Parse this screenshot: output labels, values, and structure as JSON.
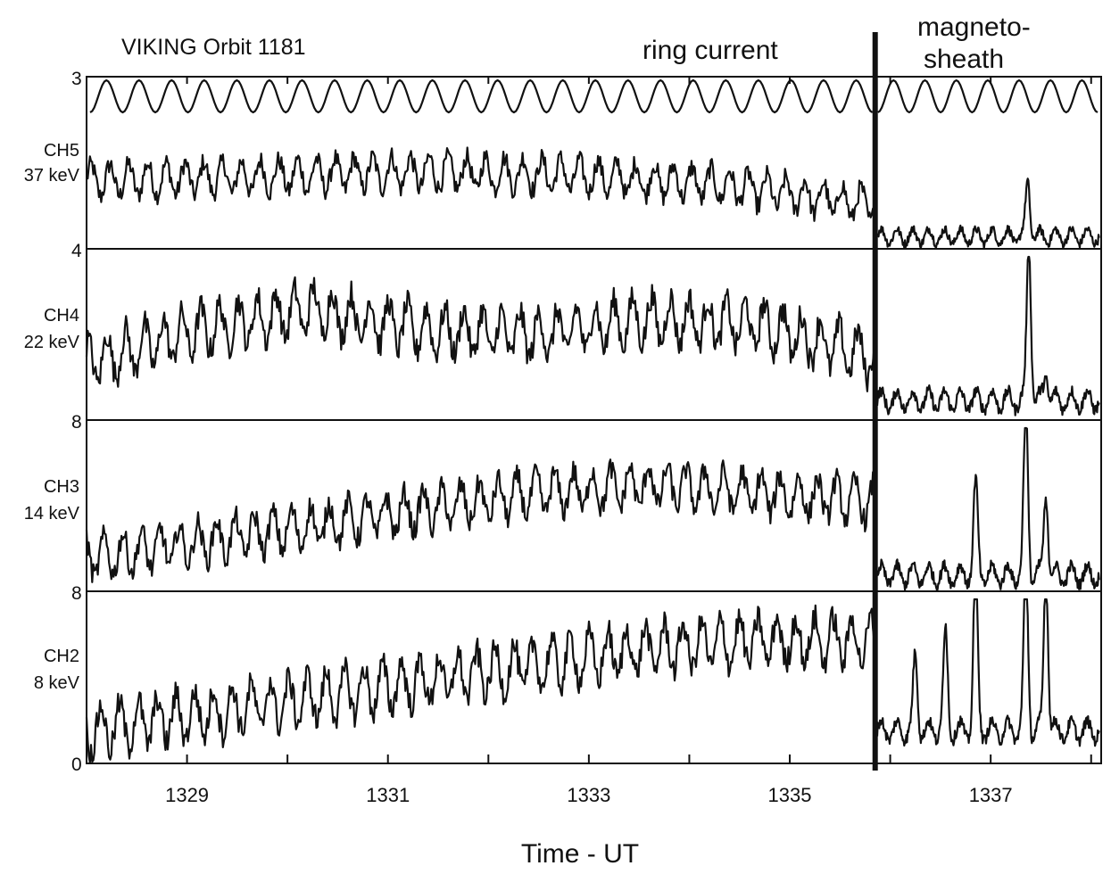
{
  "chart_data": {
    "type": "line",
    "title": "VIKING Orbit 1181",
    "xlabel": "Time - UT",
    "x_ticks": [
      "1329",
      "1331",
      "1333",
      "1335",
      "1337"
    ],
    "xlim": [
      1328.0,
      1338.1
    ],
    "region_labels": {
      "ring_current": "ring current",
      "magnetosheath_line1": "magneto-",
      "magnetosheath_line2": "sheath"
    },
    "boundary_time": 1335.85,
    "axis_scale_labels": [
      "3",
      "4",
      "8",
      "8",
      "0"
    ],
    "panels": [
      {
        "name": "CH5",
        "energy": "37 keV",
        "ring_current_level": 0.55,
        "ring_current_trend": [
          0.55,
          0.58,
          0.62,
          0.6,
          0.52,
          0.35
        ],
        "ripple": 0.13,
        "sheath_level": 0.1,
        "sheath_peaks": [
          {
            "t": 1337.37,
            "h": 0.45
          }
        ]
      },
      {
        "name": "CH4",
        "energy": "22 keV",
        "ring_current_level": 0.55,
        "ring_current_trend": [
          0.35,
          0.55,
          0.68,
          0.55,
          0.52,
          0.62,
          0.58,
          0.38
        ],
        "ripple": 0.14,
        "sheath_level": 0.12,
        "sheath_peaks": [
          {
            "t": 1337.38,
            "h": 0.95
          },
          {
            "t": 1337.55,
            "h": 0.18
          }
        ]
      },
      {
        "name": "CH3",
        "energy": "14 keV",
        "ring_current_level": 0.5,
        "ring_current_trend": [
          0.2,
          0.3,
          0.4,
          0.5,
          0.6,
          0.65,
          0.6,
          0.55
        ],
        "ripple": 0.12,
        "sheath_level": 0.1,
        "sheath_peaks": [
          {
            "t": 1336.85,
            "h": 0.55
          },
          {
            "t": 1337.35,
            "h": 1.0
          },
          {
            "t": 1337.55,
            "h": 0.5
          }
        ]
      },
      {
        "name": "CH2",
        "energy": "8 keV",
        "ring_current_level": 0.45,
        "ring_current_trend": [
          0.2,
          0.3,
          0.4,
          0.5,
          0.6,
          0.7,
          0.75,
          0.75
        ],
        "ripple": 0.14,
        "sheath_level": 0.2,
        "sheath_peaks": [
          {
            "t": 1336.25,
            "h": 0.45
          },
          {
            "t": 1336.55,
            "h": 0.6
          },
          {
            "t": 1336.85,
            "h": 1.0
          },
          {
            "t": 1337.35,
            "h": 1.0
          },
          {
            "t": 1337.55,
            "h": 1.0
          }
        ]
      }
    ],
    "spin_reference": {
      "cycles_ring_current": 24,
      "cycles_sheath": 7
    }
  }
}
